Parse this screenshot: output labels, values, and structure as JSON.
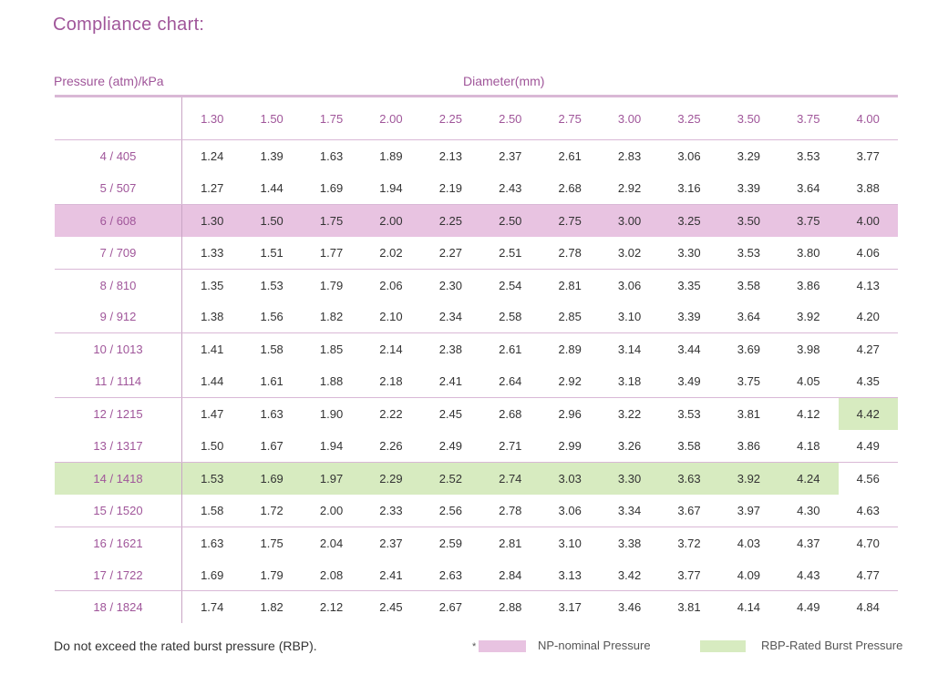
{
  "title": "Compliance chart:",
  "pressure_header": "Pressure (atm)/kPa",
  "diameter_header": "Diameter(mm)",
  "nominal_diameters": [
    "1.30",
    "1.50",
    "1.75",
    "2.00",
    "2.25",
    "2.50",
    "2.75",
    "3.00",
    "3.25",
    "3.50",
    "3.75",
    "4.00"
  ],
  "rows": [
    {
      "pressure": "4 / 405",
      "values": [
        "1.24",
        "1.39",
        "1.63",
        "1.89",
        "2.13",
        "2.37",
        "2.61",
        "2.83",
        "3.06",
        "3.29",
        "3.53",
        "3.77"
      ]
    },
    {
      "pressure": "5 / 507",
      "values": [
        "1.27",
        "1.44",
        "1.69",
        "1.94",
        "2.19",
        "2.43",
        "2.68",
        "2.92",
        "3.16",
        "3.39",
        "3.64",
        "3.88"
      ]
    },
    {
      "pressure": "6 / 608",
      "values": [
        "1.30",
        "1.50",
        "1.75",
        "2.00",
        "2.25",
        "2.50",
        "2.75",
        "3.00",
        "3.25",
        "3.50",
        "3.75",
        "4.00"
      ]
    },
    {
      "pressure": "7 / 709",
      "values": [
        "1.33",
        "1.51",
        "1.77",
        "2.02",
        "2.27",
        "2.51",
        "2.78",
        "3.02",
        "3.30",
        "3.53",
        "3.80",
        "4.06"
      ]
    },
    {
      "pressure": "8 / 810",
      "values": [
        "1.35",
        "1.53",
        "1.79",
        "2.06",
        "2.30",
        "2.54",
        "2.81",
        "3.06",
        "3.35",
        "3.58",
        "3.86",
        "4.13"
      ]
    },
    {
      "pressure": "9 / 912",
      "values": [
        "1.38",
        "1.56",
        "1.82",
        "2.10",
        "2.34",
        "2.58",
        "2.85",
        "3.10",
        "3.39",
        "3.64",
        "3.92",
        "4.20"
      ]
    },
    {
      "pressure": "10 / 1013",
      "values": [
        "1.41",
        "1.58",
        "1.85",
        "2.14",
        "2.38",
        "2.61",
        "2.89",
        "3.14",
        "3.44",
        "3.69",
        "3.98",
        "4.27"
      ]
    },
    {
      "pressure": "11 / 1114",
      "values": [
        "1.44",
        "1.61",
        "1.88",
        "2.18",
        "2.41",
        "2.64",
        "2.92",
        "3.18",
        "3.49",
        "3.75",
        "4.05",
        "4.35"
      ]
    },
    {
      "pressure": "12 / 1215",
      "values": [
        "1.47",
        "1.63",
        "1.90",
        "2.22",
        "2.45",
        "2.68",
        "2.96",
        "3.22",
        "3.53",
        "3.81",
        "4.12",
        "4.42"
      ]
    },
    {
      "pressure": "13 / 1317",
      "values": [
        "1.50",
        "1.67",
        "1.94",
        "2.26",
        "2.49",
        "2.71",
        "2.99",
        "3.26",
        "3.58",
        "3.86",
        "4.18",
        "4.49"
      ]
    },
    {
      "pressure": "14 / 1418",
      "values": [
        "1.53",
        "1.69",
        "1.97",
        "2.29",
        "2.52",
        "2.74",
        "3.03",
        "3.30",
        "3.63",
        "3.92",
        "4.24",
        "4.56"
      ]
    },
    {
      "pressure": "15 / 1520",
      "values": [
        "1.58",
        "1.72",
        "2.00",
        "2.33",
        "2.56",
        "2.78",
        "3.06",
        "3.34",
        "3.67",
        "3.97",
        "4.30",
        "4.63"
      ]
    },
    {
      "pressure": "16 / 1621",
      "values": [
        "1.63",
        "1.75",
        "2.04",
        "2.37",
        "2.59",
        "2.81",
        "3.10",
        "3.38",
        "3.72",
        "4.03",
        "4.37",
        "4.70"
      ]
    },
    {
      "pressure": "17 / 1722",
      "values": [
        "1.69",
        "1.79",
        "2.08",
        "2.41",
        "2.63",
        "2.84",
        "3.13",
        "3.42",
        "3.77",
        "4.09",
        "4.43",
        "4.77"
      ]
    },
    {
      "pressure": "18 / 1824",
      "values": [
        "1.74",
        "1.82",
        "2.12",
        "2.45",
        "2.67",
        "2.88",
        "3.17",
        "3.46",
        "3.81",
        "4.14",
        "4.49",
        "4.84"
      ]
    }
  ],
  "np_row_index": 2,
  "rbp_row_index": 10,
  "rbp_row_highlight_columns": 11,
  "rbp_extra_cell": {
    "row_index": 8,
    "column_index": 11
  },
  "footer": {
    "note": "Do not exceed the rated burst pressure (RBP).",
    "asterisk": "*",
    "np_label": "NP-nominal Pressure",
    "rbp_label": "RBP-Rated Burst Pressure"
  },
  "colors": {
    "accent": "#a0569a",
    "np_highlight": "#e8c3e1",
    "rbp_highlight": "#d7ebc0"
  }
}
